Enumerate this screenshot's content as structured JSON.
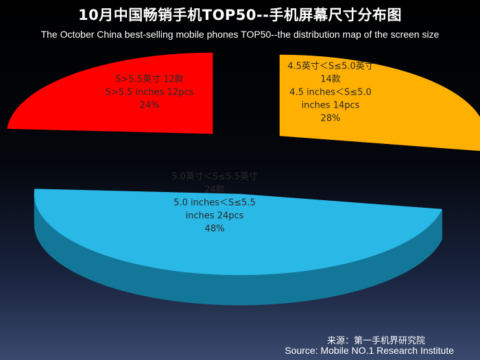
{
  "title": "10月中国畅销手机TOP50--手机屏幕尺寸分布图",
  "subtitle": "The October China best-selling mobile phones TOP50--the distribution map of the screen size",
  "source_cn": "来源：第一手机界研究院",
  "source_en": "Source: Mobile NO.1 Research Institute",
  "chart_data": {
    "type": "pie",
    "title": "10月中国畅销手机TOP50--手机屏幕尺寸分布图",
    "subtitle": "The October China best-selling mobile phones TOP50--the distribution map of the screen size",
    "style": "3d-exploded",
    "slices": [
      {
        "label_cn": "4.5英寸＜S≤5.0英寸",
        "count_cn": "14款",
        "label_en": "4.5 inches＜S≤5.0",
        "count_en": "inches  14pcs",
        "value": 14,
        "percent": "28%",
        "color": "#ffb000",
        "side_color": "#5a3a08"
      },
      {
        "label_cn": "5.0英寸＜S≤5.5英寸",
        "count_cn": "24款",
        "label_en": "5.0 inches＜S≤5.5",
        "count_en": "inches  24pcs",
        "value": 24,
        "percent": "48%",
        "color": "#2ab8e6",
        "side_color": "#137799"
      },
      {
        "label_cn": "S>5.5英寸 12款",
        "count_cn": "",
        "label_en": "S>5.5 inches  12pcs",
        "count_en": "",
        "value": 12,
        "percent": "24%",
        "color": "#ff0000",
        "side_color": "#5a0a0a"
      }
    ]
  }
}
